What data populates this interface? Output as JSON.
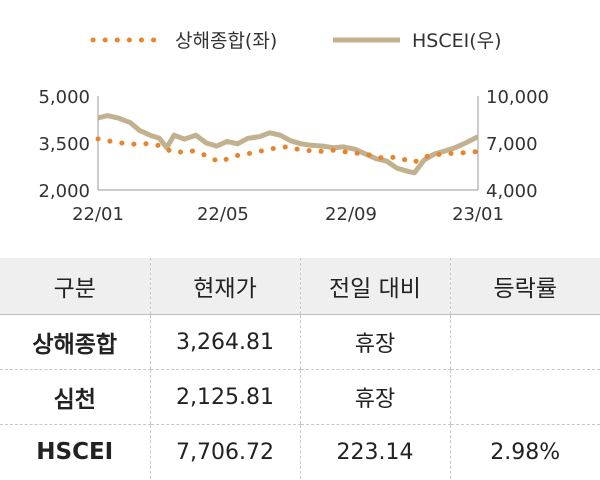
{
  "chart_data": {
    "type": "line",
    "legend": {
      "placement": "top-center"
    },
    "x_ticks": [
      "22/01",
      "22/05",
      "22/09",
      "23/01"
    ],
    "x_range": [
      "2022-01-01",
      "2023-01-01"
    ],
    "y_left": {
      "ticks": [
        "5,000",
        "3,500",
        "2,000"
      ],
      "range": [
        2000,
        5000
      ]
    },
    "y_right": {
      "ticks": [
        "10,000",
        "7,000",
        "4,000"
      ],
      "range": [
        4000,
        10000
      ]
    },
    "grid": false,
    "series": [
      {
        "name": "상해종합(좌)",
        "axis": "left",
        "style": "dotted",
        "color": "#e8842c",
        "x": [
          "2022-01-01",
          "2022-01-15",
          "2022-02-01",
          "2022-02-15",
          "2022-03-01",
          "2022-03-15",
          "2022-04-01",
          "2022-04-15",
          "2022-04-27",
          "2022-05-15",
          "2022-06-01",
          "2022-06-15",
          "2022-07-01",
          "2022-07-15",
          "2022-08-01",
          "2022-08-15",
          "2022-09-01",
          "2022-09-15",
          "2022-10-01",
          "2022-10-15",
          "2022-10-31",
          "2022-11-15",
          "2022-12-01",
          "2022-12-15",
          "2023-01-01"
        ],
        "values": [
          3630,
          3540,
          3460,
          3480,
          3420,
          3190,
          3250,
          3100,
          2900,
          3100,
          3200,
          3310,
          3380,
          3280,
          3230,
          3270,
          3190,
          3150,
          3020,
          3050,
          2880,
          3100,
          3160,
          3180,
          3230
        ]
      },
      {
        "name": "HSCEI(우)",
        "axis": "right",
        "style": "solid",
        "color": "#c1b18f",
        "x": [
          "2022-01-01",
          "2022-01-10",
          "2022-01-20",
          "2022-02-01",
          "2022-02-10",
          "2022-02-20",
          "2022-03-01",
          "2022-03-08",
          "2022-03-15",
          "2022-03-25",
          "2022-04-05",
          "2022-04-15",
          "2022-04-25",
          "2022-05-05",
          "2022-05-15",
          "2022-05-25",
          "2022-06-05",
          "2022-06-15",
          "2022-06-25",
          "2022-07-05",
          "2022-07-15",
          "2022-07-25",
          "2022-08-05",
          "2022-08-15",
          "2022-08-25",
          "2022-09-05",
          "2022-09-15",
          "2022-09-25",
          "2022-10-05",
          "2022-10-15",
          "2022-10-25",
          "2022-11-01",
          "2022-11-10",
          "2022-11-20",
          "2022-12-01",
          "2022-12-10",
          "2022-12-20",
          "2023-01-01"
        ],
        "values": [
          8600,
          8750,
          8600,
          8300,
          7800,
          7500,
          7300,
          6700,
          7500,
          7250,
          7500,
          7000,
          6800,
          7100,
          6950,
          7300,
          7400,
          7650,
          7500,
          7150,
          6950,
          6850,
          6800,
          6700,
          6750,
          6600,
          6300,
          6000,
          5850,
          5400,
          5200,
          5100,
          5900,
          6300,
          6500,
          6700,
          7000,
          7400
        ]
      }
    ]
  },
  "table": {
    "headers": [
      "구분",
      "현재가",
      "전일 대비",
      "등락률"
    ],
    "rows": [
      [
        "상해종합",
        "3,264.81",
        "휴장",
        ""
      ],
      [
        "심천",
        "2,125.81",
        "휴장",
        ""
      ],
      [
        "HSCEI",
        "7,706.72",
        "223.14",
        "2.98%"
      ]
    ]
  }
}
